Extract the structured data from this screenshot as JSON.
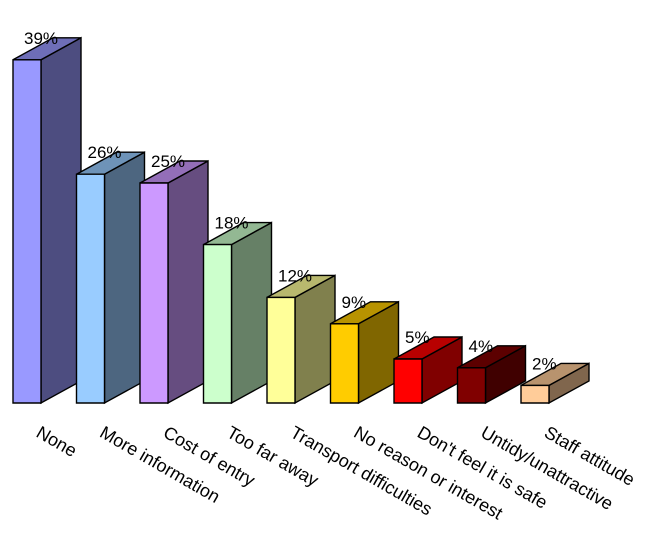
{
  "chart_data": {
    "type": "bar",
    "style": "3d-columns",
    "title": "",
    "xlabel": "",
    "ylabel": "",
    "ylim": [
      0,
      40
    ],
    "grid": false,
    "legend": "none",
    "value_format": "percent",
    "categories": [
      "None",
      "More information",
      "Cost of entry",
      "Too far away",
      "Transport difficulties",
      "No reason or interest",
      "Don't feel it is safe",
      "Untidy/unattractive",
      "Staff attitude"
    ],
    "values": [
      39,
      26,
      25,
      18,
      12,
      9,
      5,
      4,
      2
    ],
    "data_labels": [
      "39%",
      "26%",
      "25%",
      "18%",
      "12%",
      "9%",
      "5%",
      "4%",
      "2%"
    ],
    "colors": [
      "#9999ff",
      "#99ccff",
      "#cc99ff",
      "#ccffcc",
      "#ffff99",
      "#ffcc00",
      "#ff0000",
      "#800000",
      "#ffcc99"
    ]
  }
}
